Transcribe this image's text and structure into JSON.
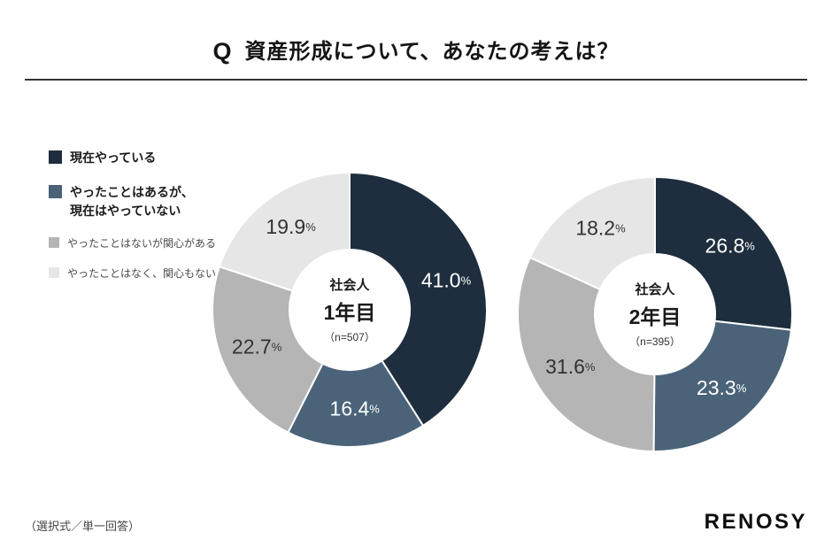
{
  "page": {
    "title_q": "Q",
    "title_text": "資産形成について、あなたの考えは？",
    "footnote": "（選択式／単一回答）",
    "logo": "RENOSY"
  },
  "legend": {
    "items": [
      {
        "lines": [
          "現在やっている"
        ],
        "color": "#1e2e3e",
        "emphasis": true
      },
      {
        "lines": [
          "やったことはあるが、",
          "現在はやっていない"
        ],
        "color": "#4a6379",
        "emphasis": true
      },
      {
        "lines": [
          "やったことはないが関心がある"
        ],
        "color": "#b5b5b5",
        "emphasis": false
      },
      {
        "lines": [
          "やったことはなく、関心もない"
        ],
        "color": "#e6e6e6",
        "emphasis": false
      }
    ]
  },
  "chart_data": [
    {
      "type": "pie",
      "style": "donut",
      "title": "社会人1年目",
      "center_label": {
        "group": "社会人",
        "year": "1年目",
        "n": "（n=507）"
      },
      "categories": [
        "現在やっている",
        "やったことはあるが、現在はやっていない",
        "やったことはないが関心がある",
        "やったことはなく、関心もない"
      ],
      "values": [
        41.0,
        16.4,
        22.7,
        19.9
      ],
      "colors": [
        "#1e2e3e",
        "#4a6379",
        "#b5b5b5",
        "#e6e6e6"
      ],
      "label_colors": [
        "#ffffff",
        "#ffffff",
        "#333333",
        "#333333"
      ],
      "start_angle": 0,
      "unit": "%",
      "legend_position": "left",
      "grid": false
    },
    {
      "type": "pie",
      "style": "donut",
      "title": "社会人2年目",
      "center_label": {
        "group": "社会人",
        "year": "2年目",
        "n": "（n=395）"
      },
      "categories": [
        "現在やっている",
        "やったことはあるが、現在はやっていない",
        "やったことはないが関心がある",
        "やったことはなく、関心もない"
      ],
      "values": [
        26.8,
        23.3,
        31.6,
        18.2
      ],
      "colors": [
        "#1e2e3e",
        "#4a6379",
        "#b5b5b5",
        "#e6e6e6"
      ],
      "label_colors": [
        "#ffffff",
        "#ffffff",
        "#333333",
        "#333333"
      ],
      "start_angle": 0,
      "unit": "%",
      "legend_position": "left",
      "grid": false
    }
  ]
}
